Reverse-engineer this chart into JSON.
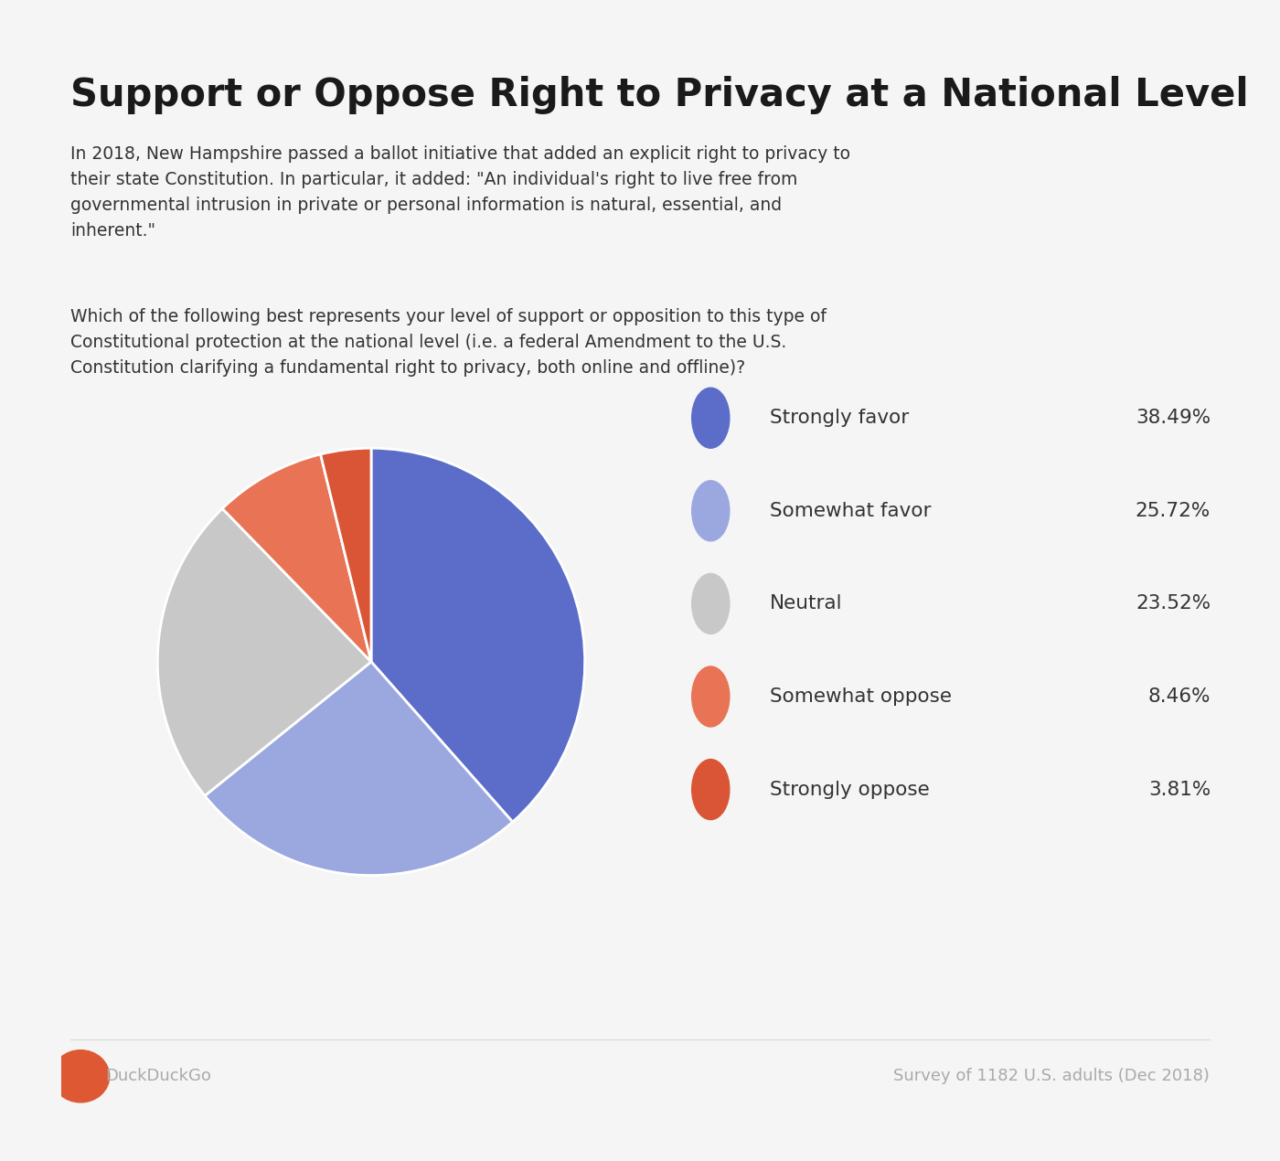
{
  "title": "Support or Oppose Right to Privacy at a National Level",
  "subtitle1": "In 2018, New Hampshire passed a ballot initiative that added an explicit right to privacy to\ntheir state Constitution. In particular, it added: \"An individual's right to live free from\ngovernmental intrusion in private or personal information is natural, essential, and\ninherent.\"",
  "subtitle2": "Which of the following best represents your level of support or opposition to this type of\nConstitutional protection at the national level (i.e. a federal Amendment to the U.S.\nConstitution clarifying a fundamental right to privacy, both online and offline)?",
  "labels": [
    "Strongly favor",
    "Somewhat favor",
    "Neutral",
    "Somewhat oppose",
    "Strongly oppose"
  ],
  "values": [
    38.49,
    25.72,
    23.52,
    8.46,
    3.81
  ],
  "colors": [
    "#5B6DC8",
    "#9BA8E0",
    "#C8C8C8",
    "#E87455",
    "#D95535"
  ],
  "background_color": "#F5F5F5",
  "footer_left": "DuckDuckGo",
  "footer_right": "Survey of 1182 U.S. adults (Dec 2018)",
  "startangle": 90
}
